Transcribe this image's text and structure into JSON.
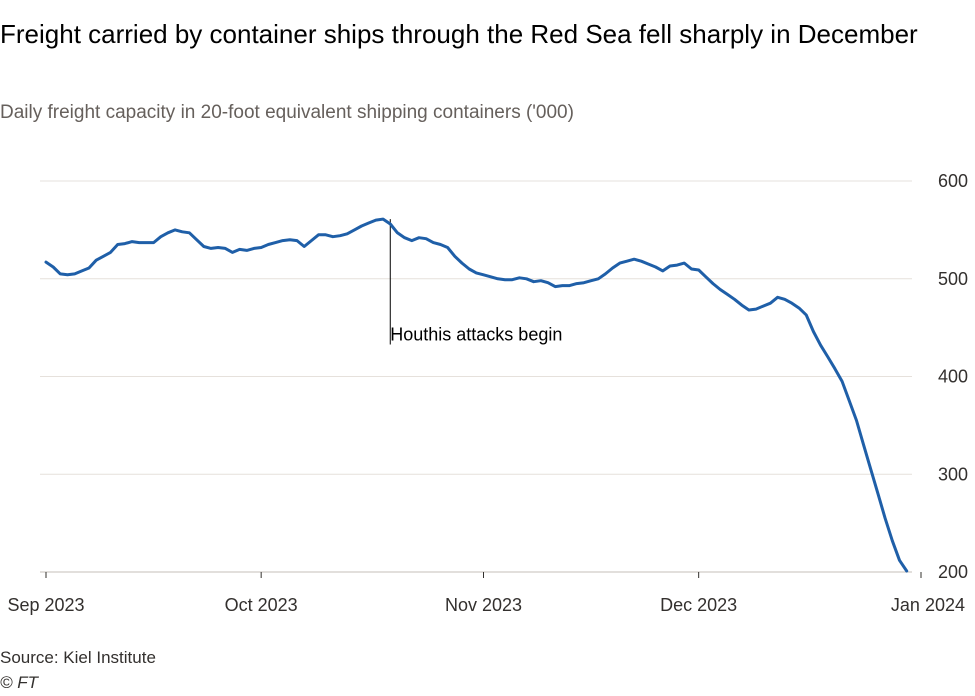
{
  "header": {
    "title": "Freight carried by container ships through the Red Sea fell sharply in December",
    "subtitle": "Daily freight capacity in 20-foot equivalent shipping containers ('000)"
  },
  "footer": {
    "source": "Source: Kiel Institute",
    "credit": "© FT"
  },
  "colors": {
    "line": "#1f5fa8",
    "grid": "#e6e1dc",
    "annotation": "#000000"
  },
  "chart_data": {
    "type": "line",
    "title": "Freight carried by container ships through the Red Sea fell sharply in December",
    "subtitle": "Daily freight capacity in 20-foot equivalent shipping containers ('000)",
    "ylim": [
      200,
      600
    ],
    "yticks": [
      200,
      300,
      400,
      500,
      600
    ],
    "y_axis_position": "right",
    "xlim": [
      "2023-09-01",
      "2024-01-01"
    ],
    "xticks": [
      {
        "date": "2023-09-01",
        "label": "Sep 2023"
      },
      {
        "date": "2023-10-01",
        "label": "Oct 2023"
      },
      {
        "date": "2023-11-01",
        "label": "Nov 2023"
      },
      {
        "date": "2023-12-01",
        "label": "Dec 2023"
      },
      {
        "date": "2024-01-01",
        "label": "Jan 2024"
      }
    ],
    "grid": true,
    "annotations": [
      {
        "date": "2023-10-19",
        "value": 561,
        "text": "Houthis attacks begin",
        "label_value": 445
      }
    ],
    "series": [
      {
        "values": [
          [
            "2023-09-01",
            517
          ],
          [
            "2023-09-02",
            512
          ],
          [
            "2023-09-03",
            505
          ],
          [
            "2023-09-04",
            504
          ],
          [
            "2023-09-05",
            505
          ],
          [
            "2023-09-06",
            508
          ],
          [
            "2023-09-07",
            511
          ],
          [
            "2023-09-08",
            519
          ],
          [
            "2023-09-09",
            523
          ],
          [
            "2023-09-10",
            527
          ],
          [
            "2023-09-11",
            535
          ],
          [
            "2023-09-12",
            536
          ],
          [
            "2023-09-13",
            538
          ],
          [
            "2023-09-14",
            537
          ],
          [
            "2023-09-15",
            537
          ],
          [
            "2023-09-16",
            537
          ],
          [
            "2023-09-17",
            543
          ],
          [
            "2023-09-18",
            547
          ],
          [
            "2023-09-19",
            550
          ],
          [
            "2023-09-20",
            548
          ],
          [
            "2023-09-21",
            547
          ],
          [
            "2023-09-22",
            540
          ],
          [
            "2023-09-23",
            533
          ],
          [
            "2023-09-24",
            531
          ],
          [
            "2023-09-25",
            532
          ],
          [
            "2023-09-26",
            531
          ],
          [
            "2023-09-27",
            527
          ],
          [
            "2023-09-28",
            530
          ],
          [
            "2023-09-29",
            529
          ],
          [
            "2023-09-30",
            531
          ],
          [
            "2023-10-01",
            532
          ],
          [
            "2023-10-02",
            535
          ],
          [
            "2023-10-03",
            537
          ],
          [
            "2023-10-04",
            539
          ],
          [
            "2023-10-05",
            540
          ],
          [
            "2023-10-06",
            539
          ],
          [
            "2023-10-07",
            533
          ],
          [
            "2023-10-08",
            539
          ],
          [
            "2023-10-09",
            545
          ],
          [
            "2023-10-10",
            545
          ],
          [
            "2023-10-11",
            543
          ],
          [
            "2023-10-12",
            544
          ],
          [
            "2023-10-13",
            546
          ],
          [
            "2023-10-14",
            550
          ],
          [
            "2023-10-15",
            554
          ],
          [
            "2023-10-16",
            557
          ],
          [
            "2023-10-17",
            560
          ],
          [
            "2023-10-18",
            561
          ],
          [
            "2023-10-19",
            556
          ],
          [
            "2023-10-20",
            547
          ],
          [
            "2023-10-21",
            542
          ],
          [
            "2023-10-22",
            539
          ],
          [
            "2023-10-23",
            542
          ],
          [
            "2023-10-24",
            541
          ],
          [
            "2023-10-25",
            537
          ],
          [
            "2023-10-26",
            535
          ],
          [
            "2023-10-27",
            532
          ],
          [
            "2023-10-28",
            523
          ],
          [
            "2023-10-29",
            516
          ],
          [
            "2023-10-30",
            510
          ],
          [
            "2023-10-31",
            506
          ],
          [
            "2023-11-01",
            504
          ],
          [
            "2023-11-02",
            502
          ],
          [
            "2023-11-03",
            500
          ],
          [
            "2023-11-04",
            499
          ],
          [
            "2023-11-05",
            499
          ],
          [
            "2023-11-06",
            501
          ],
          [
            "2023-11-07",
            500
          ],
          [
            "2023-11-08",
            497
          ],
          [
            "2023-11-09",
            498
          ],
          [
            "2023-11-10",
            496
          ],
          [
            "2023-11-11",
            492
          ],
          [
            "2023-11-12",
            493
          ],
          [
            "2023-11-13",
            493
          ],
          [
            "2023-11-14",
            495
          ],
          [
            "2023-11-15",
            496
          ],
          [
            "2023-11-16",
            498
          ],
          [
            "2023-11-17",
            500
          ],
          [
            "2023-11-18",
            505
          ],
          [
            "2023-11-19",
            511
          ],
          [
            "2023-11-20",
            516
          ],
          [
            "2023-11-21",
            518
          ],
          [
            "2023-11-22",
            520
          ],
          [
            "2023-11-23",
            518
          ],
          [
            "2023-11-24",
            515
          ],
          [
            "2023-11-25",
            512
          ],
          [
            "2023-11-26",
            508
          ],
          [
            "2023-11-27",
            513
          ],
          [
            "2023-11-28",
            514
          ],
          [
            "2023-11-29",
            516
          ],
          [
            "2023-11-30",
            510
          ],
          [
            "2023-12-01",
            509
          ],
          [
            "2023-12-02",
            502
          ],
          [
            "2023-12-03",
            495
          ],
          [
            "2023-12-04",
            489
          ],
          [
            "2023-12-05",
            484
          ],
          [
            "2023-12-06",
            479
          ],
          [
            "2023-12-07",
            473
          ],
          [
            "2023-12-08",
            468
          ],
          [
            "2023-12-09",
            469
          ],
          [
            "2023-12-10",
            472
          ],
          [
            "2023-12-11",
            475
          ],
          [
            "2023-12-12",
            481
          ],
          [
            "2023-12-13",
            479
          ],
          [
            "2023-12-14",
            475
          ],
          [
            "2023-12-15",
            470
          ],
          [
            "2023-12-16",
            463
          ],
          [
            "2023-12-17",
            446
          ],
          [
            "2023-12-18",
            432
          ],
          [
            "2023-12-19",
            420
          ],
          [
            "2023-12-20",
            408
          ],
          [
            "2023-12-21",
            395
          ],
          [
            "2023-12-22",
            375
          ],
          [
            "2023-12-23",
            355
          ],
          [
            "2023-12-24",
            330
          ],
          [
            "2023-12-25",
            305
          ],
          [
            "2023-12-26",
            280
          ],
          [
            "2023-12-27",
            255
          ],
          [
            "2023-12-28",
            232
          ],
          [
            "2023-12-29",
            212
          ],
          [
            "2023-12-30",
            201
          ]
        ]
      }
    ]
  }
}
